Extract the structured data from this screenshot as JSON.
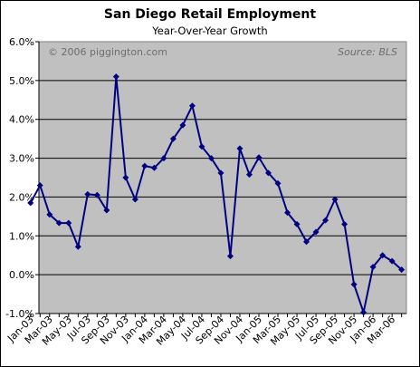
{
  "chart_data": {
    "type": "line",
    "title": "San Diego Retail Employment",
    "subtitle": "Year-Over-Year Growth",
    "xlabel": "",
    "ylabel": "",
    "copyright_note": "© 2006 piggington.com",
    "source_note": "Source: BLS",
    "ylim": [
      -1.0,
      6.0
    ],
    "y_ticks": [
      "-1.0%",
      "0.0%",
      "1.0%",
      "2.0%",
      "3.0%",
      "4.0%",
      "5.0%",
      "6.0%"
    ],
    "y_tick_values": [
      -1.0,
      0.0,
      1.0,
      2.0,
      3.0,
      4.0,
      5.0,
      6.0
    ],
    "x_tick_labels": [
      "Jan-03",
      "Mar-03",
      "May-03",
      "Jul-03",
      "Sep-03",
      "Nov-03",
      "Jan-04",
      "Mar-04",
      "May-04",
      "Jul-04",
      "Sep-04",
      "Nov-04",
      "Jan-05",
      "Mar-05",
      "May-05",
      "Jul-05",
      "Sep-05",
      "Nov-05",
      "Jan-06",
      "Mar-06"
    ],
    "grid": "horizontal",
    "legend": "none",
    "plot_background": "#c0c0c0",
    "series": [
      {
        "color": "#000080",
        "marker": "diamond",
        "x": [
          "Jan-03",
          "Feb-03",
          "Mar-03",
          "Apr-03",
          "May-03",
          "Jun-03",
          "Jul-03",
          "Aug-03",
          "Sep-03",
          "Oct-03",
          "Nov-03",
          "Dec-03",
          "Jan-04",
          "Feb-04",
          "Mar-04",
          "Apr-04",
          "May-04",
          "Jun-04",
          "Jul-04",
          "Aug-04",
          "Sep-04",
          "Oct-04",
          "Nov-04",
          "Dec-04",
          "Jan-05",
          "Feb-05",
          "Mar-05",
          "Apr-05",
          "May-05",
          "Jun-05",
          "Jul-05",
          "Aug-05",
          "Sep-05",
          "Oct-05",
          "Nov-05",
          "Dec-05",
          "Jan-06",
          "Feb-06",
          "Mar-06",
          "Apr-06"
        ],
        "values": [
          1.85,
          2.3,
          1.55,
          1.33,
          1.33,
          0.72,
          2.07,
          2.05,
          1.66,
          5.1,
          2.5,
          1.94,
          2.8,
          2.75,
          3.0,
          3.5,
          3.85,
          4.35,
          3.3,
          3.0,
          2.62,
          0.48,
          3.25,
          2.58,
          3.02,
          2.62,
          2.35,
          1.6,
          1.3,
          0.85,
          1.1,
          1.4,
          1.94,
          1.3,
          -0.25,
          -0.97,
          0.2,
          0.5,
          0.35,
          0.13
        ]
      }
    ]
  }
}
